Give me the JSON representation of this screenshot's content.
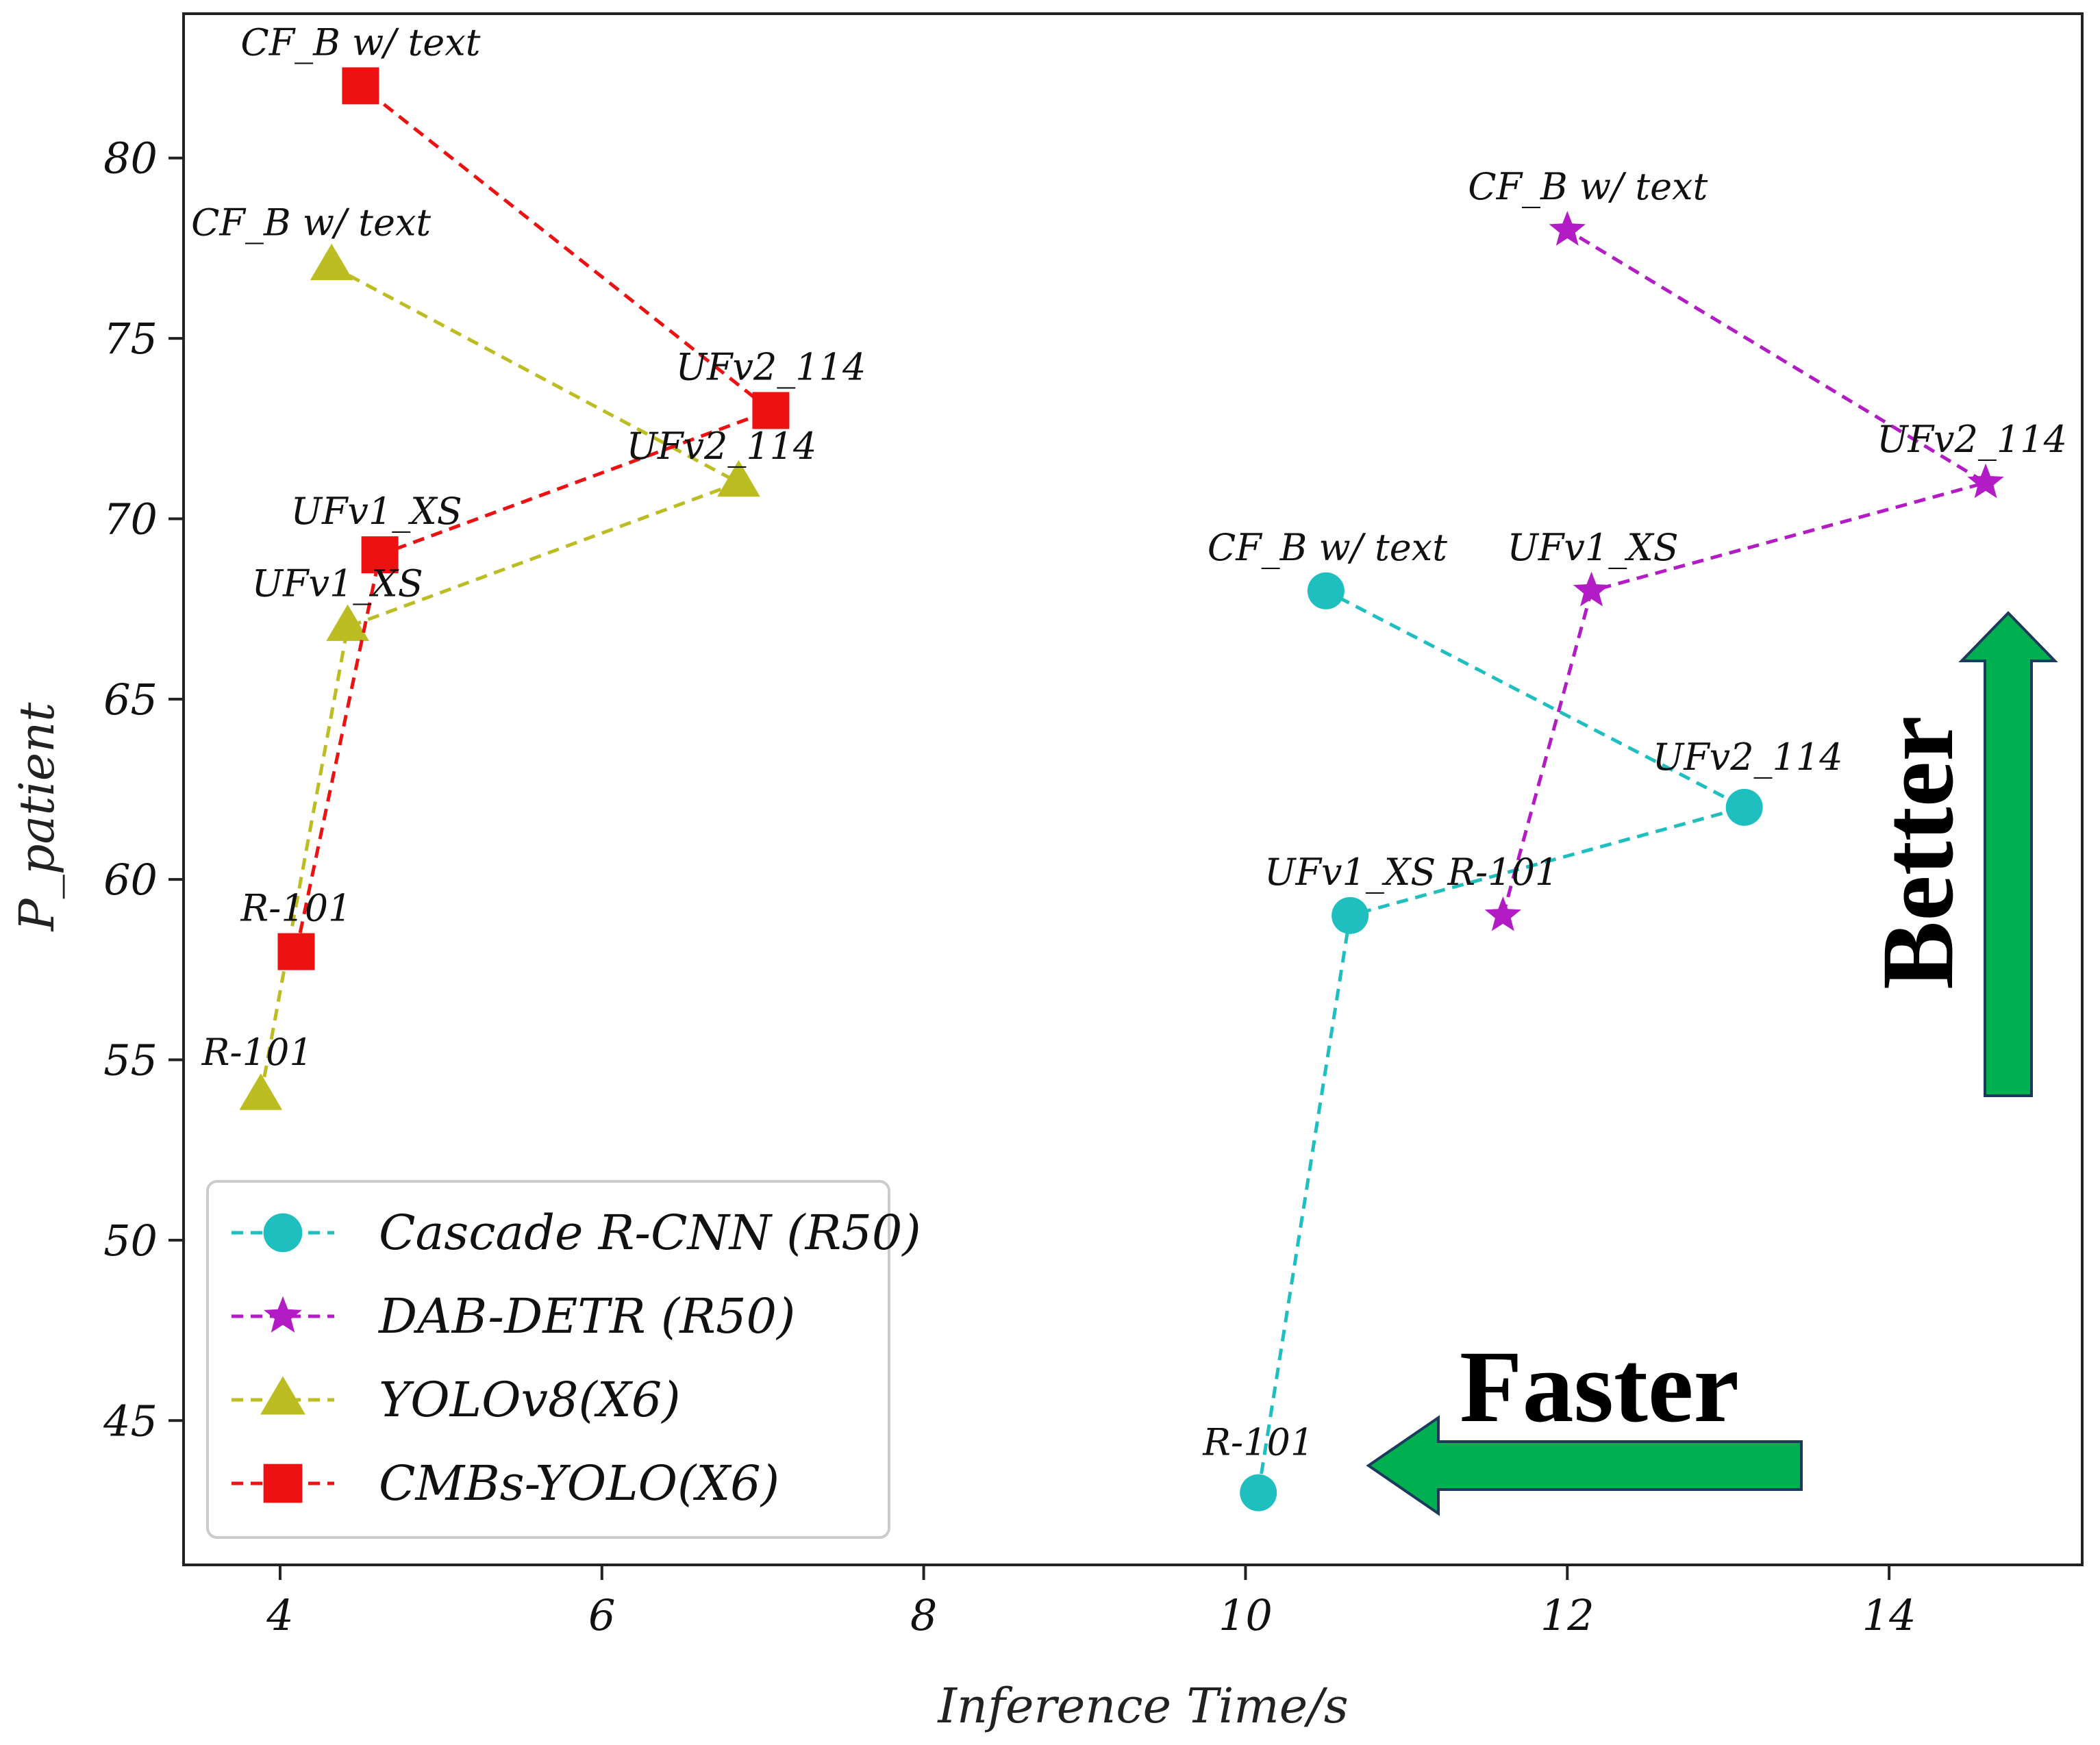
{
  "chart_data": {
    "type": "line",
    "title": "",
    "xlabel": "Inference Time/s",
    "ylabel": "P_patient",
    "xlim": [
      3.4,
      15.2
    ],
    "ylim": [
      41.0,
      84.0
    ],
    "xticks": [
      4,
      6,
      8,
      10,
      12,
      14
    ],
    "yticks": [
      45,
      50,
      55,
      60,
      65,
      70,
      75,
      80
    ],
    "grid": false,
    "legend_position": "lower-left",
    "series": [
      {
        "name": "Cascade R-CNN (R50)",
        "color": "#1fbfbf",
        "marker": "circle",
        "points": [
          {
            "label": "R-101",
            "x": 10.08,
            "y": 43.0
          },
          {
            "label": "UFv1_XS",
            "x": 10.65,
            "y": 59.0
          },
          {
            "label": "UFv2_114",
            "x": 13.1,
            "y": 62.0
          },
          {
            "label": "CF_B w/ text",
            "x": 10.5,
            "y": 68.0
          }
        ]
      },
      {
        "name": "DAB-DETR (R50)",
        "color": "#b31bc4",
        "marker": "star",
        "points": [
          {
            "label": "R-101",
            "x": 11.6,
            "y": 59.0
          },
          {
            "label": "UFv1_XS",
            "x": 12.15,
            "y": 68.0
          },
          {
            "label": "UFv2_114",
            "x": 14.6,
            "y": 71.0
          },
          {
            "label": "CF_B w/ text",
            "x": 12.0,
            "y": 78.0
          }
        ]
      },
      {
        "name": "YOLOv8(X6)",
        "color": "#bcbd22",
        "marker": "triangle",
        "points": [
          {
            "label": "R-101",
            "x": 3.88,
            "y": 54.0
          },
          {
            "label": "UFv1_XS",
            "x": 4.42,
            "y": 67.0
          },
          {
            "label": "UFv2_114",
            "x": 6.85,
            "y": 71.0
          },
          {
            "label": "CF_B w/ text",
            "x": 4.32,
            "y": 77.0
          }
        ]
      },
      {
        "name": "CMBs-YOLO(X6)",
        "color": "#ee1111",
        "marker": "square",
        "points": [
          {
            "label": "R-101",
            "x": 4.1,
            "y": 58.0
          },
          {
            "label": "UFv1_XS",
            "x": 4.62,
            "y": 69.0
          },
          {
            "label": "UFv2_114",
            "x": 7.05,
            "y": 73.0
          },
          {
            "label": "CF_B w/ text",
            "x": 4.5,
            "y": 82.0
          }
        ]
      }
    ],
    "annotations": {
      "faster": {
        "text": "Faster",
        "color": "#00b050"
      },
      "better": {
        "text": "Better",
        "color": "#00b050"
      }
    }
  }
}
